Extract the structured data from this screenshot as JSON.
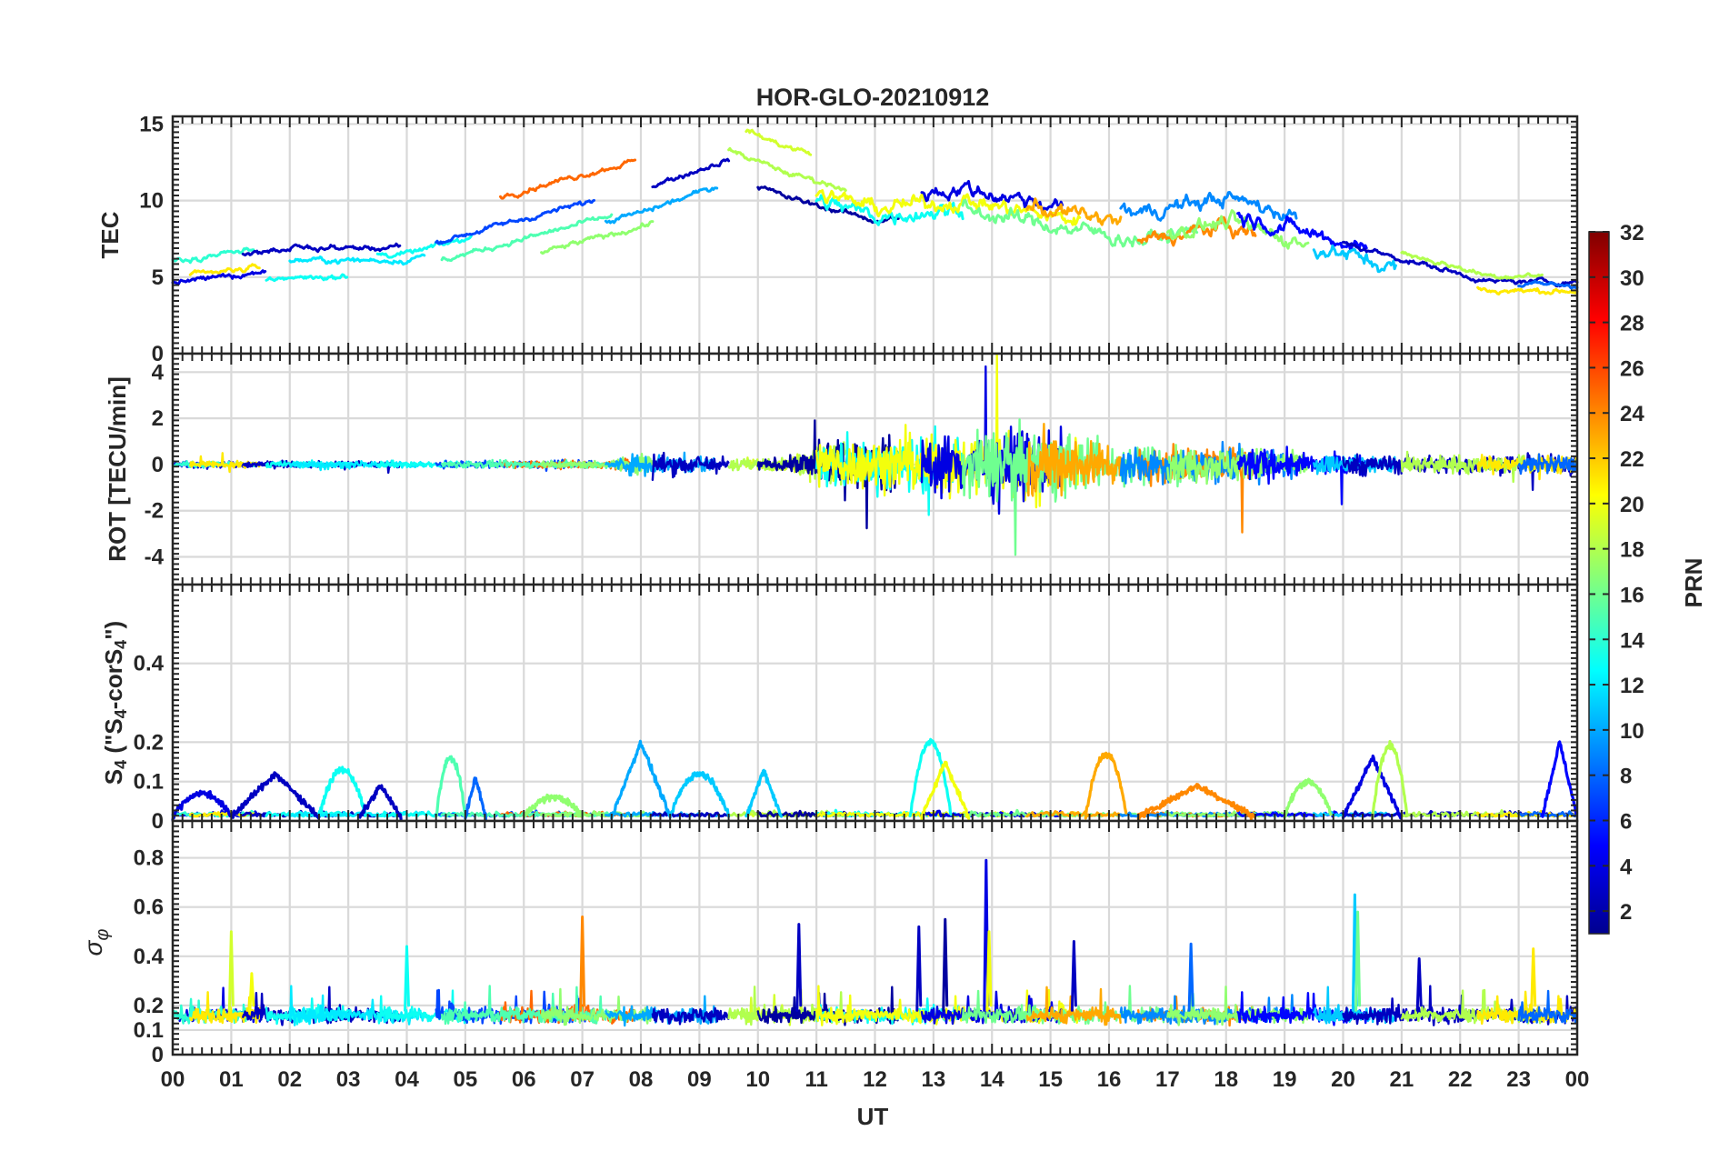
{
  "chart_data": {
    "type": "line",
    "title": "HOR-GLO-20210912",
    "xlabel": "UT",
    "x_ticks": [
      "00",
      "01",
      "02",
      "03",
      "04",
      "05",
      "06",
      "07",
      "08",
      "09",
      "10",
      "11",
      "12",
      "13",
      "14",
      "15",
      "16",
      "17",
      "18",
      "19",
      "20",
      "21",
      "22",
      "23",
      "00"
    ],
    "xlim_hours": [
      0,
      24
    ],
    "grid": true,
    "panels": [
      {
        "id": "tec",
        "ylabel": "TEC",
        "ylim": [
          0,
          15.5
        ],
        "yticks": [
          0,
          5,
          10,
          15
        ],
        "series_profile": {
          "hours": [
            0,
            2,
            4,
            6,
            8,
            9.5,
            10.5,
            12,
            13.5,
            15,
            16.5,
            18,
            19.5,
            21,
            22.5,
            24
          ],
          "tec": [
            5.5,
            6.5,
            6.5,
            8.5,
            10.5,
            12.5,
            11,
            9.5,
            10,
            9,
            8,
            9,
            7.5,
            6,
            4.5,
            4.5
          ]
        }
      },
      {
        "id": "rot",
        "ylabel": "ROT [TECU/min]",
        "ylim": [
          -5.2,
          4.8
        ],
        "yticks": [
          -4,
          -2,
          0,
          2,
          4
        ],
        "activity_profile": {
          "hours": [
            0,
            7.5,
            8,
            10.5,
            11,
            13,
            14,
            15,
            16,
            17,
            18.5,
            19.5,
            24
          ],
          "amplitude": [
            0.12,
            0.15,
            0.5,
            0.2,
            0.9,
            1.2,
            1.4,
            1.3,
            0.9,
            0.7,
            0.7,
            0.4,
            0.35
          ]
        }
      },
      {
        "id": "s4",
        "ylabel": "S4 (\"S4-corS4\")",
        "ylabel_main": "S",
        "ylabel_sub": "4",
        "ylabel_mid": " (\"S",
        "ylabel_sub2": "4",
        "ylabel_tail": "-corS",
        "ylabel_sub3": "4",
        "ylabel_end": "\")",
        "ylim": [
          0,
          0.6
        ],
        "yticks": [
          0,
          0.1,
          0.2,
          0.4
        ],
        "tick_labels": [
          "0",
          "0.1",
          "0.2",
          "0.4"
        ],
        "bumps": [
          {
            "start": 0.0,
            "end": 1.0,
            "peak": 0.07,
            "prn": 4
          },
          {
            "start": 1.0,
            "end": 2.5,
            "peak": 0.12,
            "prn": 3
          },
          {
            "start": 2.5,
            "end": 3.3,
            "peak": 0.13,
            "prn": 13
          },
          {
            "start": 3.2,
            "end": 3.9,
            "peak": 0.09,
            "prn": 3
          },
          {
            "start": 4.5,
            "end": 5.0,
            "peak": 0.16,
            "prn": 15
          },
          {
            "start": 5.0,
            "end": 5.35,
            "peak": 0.11,
            "prn": 8
          },
          {
            "start": 6.0,
            "end": 7.0,
            "peak": 0.06,
            "prn": 17
          },
          {
            "start": 7.5,
            "end": 8.5,
            "peak": 0.2,
            "prn": 10
          },
          {
            "start": 8.5,
            "end": 9.5,
            "peak": 0.12,
            "prn": 11
          },
          {
            "start": 9.8,
            "end": 10.4,
            "peak": 0.13,
            "prn": 11
          },
          {
            "start": 12.6,
            "end": 13.3,
            "peak": 0.2,
            "prn": 13
          },
          {
            "start": 12.8,
            "end": 13.6,
            "peak": 0.15,
            "prn": 20
          },
          {
            "start": 15.6,
            "end": 16.3,
            "peak": 0.17,
            "prn": 23
          },
          {
            "start": 16.5,
            "end": 18.5,
            "peak": 0.09,
            "prn": 24
          },
          {
            "start": 19.0,
            "end": 19.8,
            "peak": 0.1,
            "prn": 17
          },
          {
            "start": 20.0,
            "end": 21.0,
            "peak": 0.16,
            "prn": 4
          },
          {
            "start": 20.5,
            "end": 21.1,
            "peak": 0.19,
            "prn": 18
          },
          {
            "start": 23.4,
            "end": 24.0,
            "peak": 0.2,
            "prn": 5
          }
        ]
      },
      {
        "id": "sigma_phi",
        "ylabel": "σφ",
        "ylabel_main": "σ",
        "ylabel_sub": "φ",
        "ylim": [
          0,
          0.95
        ],
        "yticks": [
          0,
          0.1,
          0.2,
          0.4,
          0.6,
          0.8
        ],
        "baseline": 0.16,
        "spikes": [
          {
            "hour": 1.0,
            "value": 0.5,
            "prn": 19
          },
          {
            "hour": 1.35,
            "value": 0.33,
            "prn": 20
          },
          {
            "hour": 4.0,
            "value": 0.44,
            "prn": 13
          },
          {
            "hour": 7.0,
            "value": 0.56,
            "prn": 24
          },
          {
            "hour": 10.7,
            "value": 0.53,
            "prn": 3
          },
          {
            "hour": 12.75,
            "value": 0.52,
            "prn": 3
          },
          {
            "hour": 13.2,
            "value": 0.55,
            "prn": 2
          },
          {
            "hour": 13.9,
            "value": 0.79,
            "prn": 4
          },
          {
            "hour": 13.95,
            "value": 0.5,
            "prn": 20
          },
          {
            "hour": 15.4,
            "value": 0.46,
            "prn": 3
          },
          {
            "hour": 17.4,
            "value": 0.45,
            "prn": 8
          },
          {
            "hour": 20.2,
            "value": 0.65,
            "prn": 11
          },
          {
            "hour": 20.25,
            "value": 0.58,
            "prn": 16
          },
          {
            "hour": 21.3,
            "value": 0.39,
            "prn": 3
          },
          {
            "hour": 23.25,
            "value": 0.43,
            "prn": 21
          }
        ]
      }
    ],
    "colorbar": {
      "label": "PRN",
      "colormap": "jet",
      "range": [
        1,
        32
      ],
      "ticks": [
        2,
        4,
        6,
        8,
        10,
        12,
        14,
        16,
        18,
        20,
        22,
        24,
        26,
        28,
        30,
        32
      ]
    },
    "prn_tracks": [
      {
        "prn": 4,
        "start": 0.0,
        "end": 1.6,
        "offset": -0.9
      },
      {
        "prn": 14,
        "start": 0.0,
        "end": 1.4,
        "offset": 0.6
      },
      {
        "prn": 21,
        "start": 0.3,
        "end": 1.5,
        "offset": -0.6
      },
      {
        "prn": 3,
        "start": 1.2,
        "end": 3.9,
        "offset": 0.4
      },
      {
        "prn": 13,
        "start": 1.6,
        "end": 3.0,
        "offset": -1.5
      },
      {
        "prn": 12,
        "start": 2.0,
        "end": 4.3,
        "offset": -0.4
      },
      {
        "prn": 13,
        "start": 3.5,
        "end": 5.1,
        "offset": 0.0
      },
      {
        "prn": 7,
        "start": 4.5,
        "end": 7.2,
        "offset": 0.3
      },
      {
        "prn": 25,
        "start": 5.6,
        "end": 7.9,
        "offset": 2.2
      },
      {
        "prn": 15,
        "start": 4.6,
        "end": 7.5,
        "offset": -1.0
      },
      {
        "prn": 17,
        "start": 6.3,
        "end": 8.2,
        "offset": -2.2
      },
      {
        "prn": 10,
        "start": 7.4,
        "end": 9.3,
        "offset": -1.3
      },
      {
        "prn": 3,
        "start": 8.2,
        "end": 9.5,
        "offset": 0.2
      },
      {
        "prn": 19,
        "start": 9.8,
        "end": 10.9,
        "offset": 2.5
      },
      {
        "prn": 18,
        "start": 9.5,
        "end": 11.5,
        "offset": 0.8
      },
      {
        "prn": 2,
        "start": 10.0,
        "end": 12.4,
        "offset": -0.8
      },
      {
        "prn": 13,
        "start": 11.0,
        "end": 13.5,
        "offset": -0.5
      },
      {
        "prn": 20,
        "start": 11.0,
        "end": 15.5,
        "offset": 0.0
      },
      {
        "prn": 4,
        "start": 12.8,
        "end": 15.2,
        "offset": 0.8
      },
      {
        "prn": 16,
        "start": 13.5,
        "end": 17.5,
        "offset": -0.6
      },
      {
        "prn": 23,
        "start": 14.6,
        "end": 16.2,
        "offset": 0.4
      },
      {
        "prn": 24,
        "start": 16.5,
        "end": 18.5,
        "offset": -0.7
      },
      {
        "prn": 9,
        "start": 16.2,
        "end": 19.2,
        "offset": 1.2
      },
      {
        "prn": 17,
        "start": 17.0,
        "end": 19.4,
        "offset": -0.4
      },
      {
        "prn": 5,
        "start": 18.2,
        "end": 20.4,
        "offset": 0.3
      },
      {
        "prn": 11,
        "start": 19.5,
        "end": 20.9,
        "offset": -0.5
      },
      {
        "prn": 3,
        "start": 20.0,
        "end": 24.0,
        "offset": 0.2
      },
      {
        "prn": 18,
        "start": 21.0,
        "end": 23.4,
        "offset": 0.6
      },
      {
        "prn": 21,
        "start": 22.3,
        "end": 24.0,
        "offset": -0.4
      },
      {
        "prn": 8,
        "start": 23.0,
        "end": 24.0,
        "offset": 0.0
      }
    ]
  }
}
